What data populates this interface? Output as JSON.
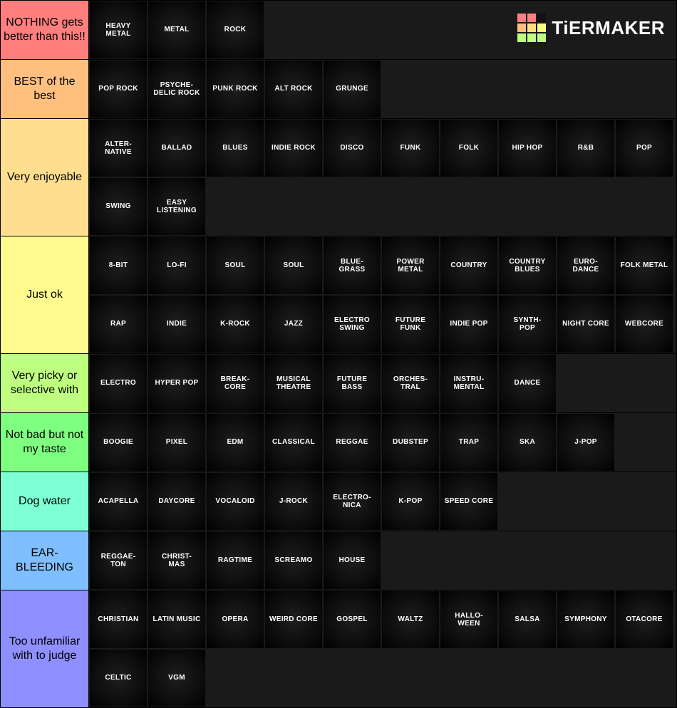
{
  "brand": {
    "name": "TiERMAKER",
    "logo_colors": [
      "#ff7f7f",
      "#ff7f7f",
      "#111111",
      "#ffbf7f",
      "#ffdf7f",
      "#ffff7f",
      "#bfff7f",
      "#bfff7f",
      "#bfff7f"
    ]
  },
  "tile_style": {
    "background_gradient": [
      "#1e1e1e",
      "#0a0a0a",
      "#000000"
    ],
    "text_color": "#ffffff",
    "font_size": 10,
    "font_weight": 700,
    "size": 80
  },
  "label_style": {
    "width": 124,
    "font_size": 16,
    "text_color": "#000000"
  },
  "tiers": [
    {
      "label": "NOTHING gets better than this!!",
      "color": "#ff7f7f",
      "items": [
        "HEAVY METAL",
        "METAL",
        "ROCK"
      ]
    },
    {
      "label": "BEST of the best",
      "color": "#ffbf7f",
      "items": [
        "POP ROCK",
        "PSYCHE-\nDELIC ROCK",
        "PUNK ROCK",
        "ALT ROCK",
        "GRUNGE"
      ]
    },
    {
      "label": "Very enjoyable",
      "color": "#ffdf8f",
      "items": [
        "ALTER-\nNATIVE",
        "BALLAD",
        "BLUES",
        "INDIE ROCK",
        "DISCO",
        "FUNK",
        "FOLK",
        "HIP HOP",
        "R&B",
        "POP",
        "SWING",
        "EASY LISTENING"
      ]
    },
    {
      "label": "Just ok",
      "color": "#fffb8f",
      "items": [
        "8-BIT",
        "LO-FI",
        "SOUL",
        "SOUL",
        "BLUE-\nGRASS",
        "POWER METAL",
        "COUNTRY",
        "COUNTRY BLUES",
        "EURO-\nDANCE",
        "FOLK METAL",
        "RAP",
        "INDIE",
        "K-ROCK",
        "JAZZ",
        "ELECTRO SWING",
        "FUTURE FUNK",
        "INDIE POP",
        "SYNTH-\nPOP",
        "NIGHT CORE",
        "WEBCORE"
      ]
    },
    {
      "label": "Very picky or selective with",
      "color": "#bfff7f",
      "items": [
        "ELECTRO",
        "HYPER POP",
        "BREAK-\nCORE",
        "MUSICAL THEATRE",
        "FUTURE BASS",
        "ORCHES-\nTRAL",
        "INSTRU-\nMENTAL",
        "DANCE"
      ]
    },
    {
      "label": "Not bad but not my taste",
      "color": "#7fff7f",
      "items": [
        "BOOGIE",
        "PIXEL",
        "EDM",
        "CLASSICAL",
        "REGGAE",
        "DUBSTEP",
        "TRAP",
        "SKA",
        "J-POP"
      ]
    },
    {
      "label": "Dog water",
      "color": "#7fffd4",
      "items": [
        "ACAPELLA",
        "DAYCORE",
        "VOCALOID",
        "J-ROCK",
        "ELECTRO-\nNICA",
        "K-POP",
        "SPEED CORE"
      ]
    },
    {
      "label": "EAR-BLEEDING",
      "color": "#7fbfff",
      "items": [
        "REGGAE-\nTON",
        "CHRIST-\nMAS",
        "RAGTIME",
        "SCREAMO",
        "HOUSE"
      ]
    },
    {
      "label": "Too unfamiliar with to judge",
      "color": "#8f8fff",
      "items": [
        "CHRISTIAN",
        "LATIN MUSIC",
        "OPERA",
        "WEIRD CORE",
        "GOSPEL",
        "WALTZ",
        "HALLO-\nWEEN",
        "SALSA",
        "SYMPHONY",
        "OTACORE",
        "CELTIC",
        "VGM"
      ]
    }
  ]
}
